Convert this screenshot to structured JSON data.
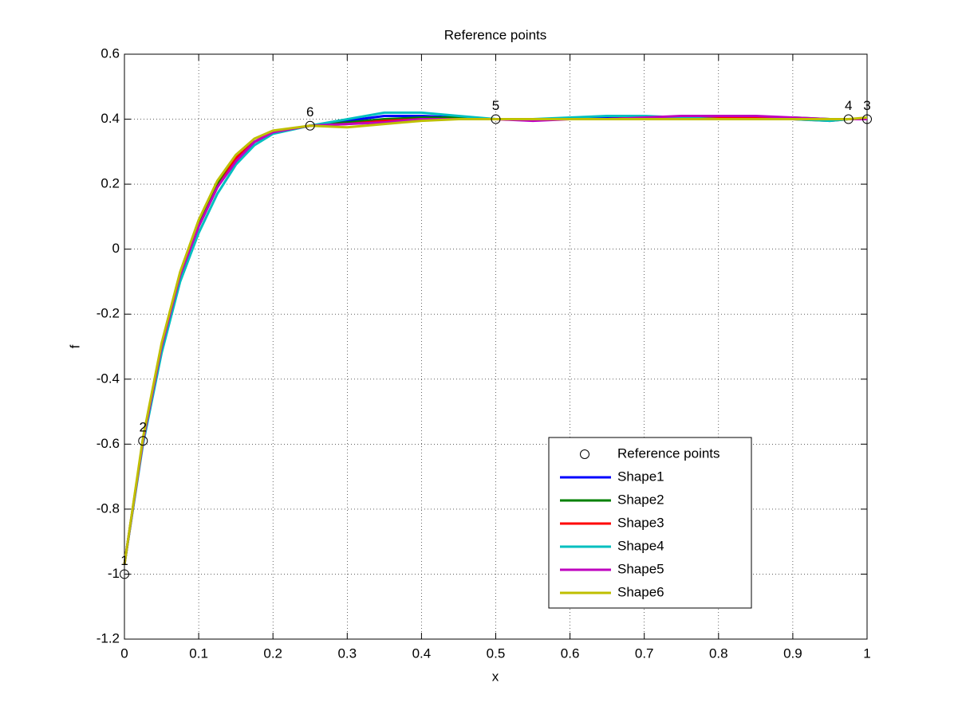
{
  "chart_data": {
    "type": "line",
    "title": "Reference points",
    "x_label": "x",
    "y_label": "f",
    "x": [
      0,
      0.025,
      0.05,
      0.075,
      0.1,
      0.125,
      0.15,
      0.175,
      0.2,
      0.25,
      0.3,
      0.35,
      0.4,
      0.45,
      0.5,
      0.55,
      0.6,
      0.65,
      0.7,
      0.75,
      0.8,
      0.85,
      0.9,
      0.95,
      0.975,
      1
    ],
    "series": [
      {
        "name": "Shape1",
        "color": "#0000ff",
        "values": [
          -0.97,
          -0.59,
          -0.3,
          -0.08,
          0.08,
          0.2,
          0.28,
          0.33,
          0.36,
          0.38,
          0.395,
          0.41,
          0.41,
          0.405,
          0.4,
          0.4,
          0.4,
          0.405,
          0.405,
          0.405,
          0.405,
          0.405,
          0.4,
          0.4,
          0.4,
          0.4
        ]
      },
      {
        "name": "Shape2",
        "color": "#008000",
        "values": [
          -0.97,
          -0.59,
          -0.3,
          -0.08,
          0.08,
          0.2,
          0.28,
          0.33,
          0.36,
          0.38,
          0.39,
          0.4,
          0.405,
          0.405,
          0.4,
          0.4,
          0.4,
          0.4,
          0.405,
          0.405,
          0.405,
          0.405,
          0.405,
          0.4,
          0.4,
          0.4
        ]
      },
      {
        "name": "Shape3",
        "color": "#ff0000",
        "values": [
          -0.97,
          -0.59,
          -0.3,
          -0.08,
          0.07,
          0.19,
          0.28,
          0.33,
          0.36,
          0.38,
          0.385,
          0.395,
          0.4,
          0.4,
          0.4,
          0.4,
          0.4,
          0.4,
          0.405,
          0.405,
          0.405,
          0.405,
          0.4,
          0.395,
          0.4,
          0.4
        ]
      },
      {
        "name": "Shape4",
        "color": "#00bfbf",
        "values": [
          -0.97,
          -0.6,
          -0.32,
          -0.1,
          0.05,
          0.17,
          0.26,
          0.32,
          0.355,
          0.38,
          0.4,
          0.42,
          0.42,
          0.41,
          0.4,
          0.4,
          0.405,
          0.41,
          0.41,
          0.405,
          0.4,
          0.4,
          0.4,
          0.395,
          0.4,
          0.4
        ]
      },
      {
        "name": "Shape5",
        "color": "#bf00bf",
        "values": [
          -0.97,
          -0.59,
          -0.3,
          -0.08,
          0.07,
          0.19,
          0.27,
          0.33,
          0.36,
          0.38,
          0.385,
          0.39,
          0.4,
          0.4,
          0.4,
          0.395,
          0.4,
          0.4,
          0.405,
          0.41,
          0.41,
          0.41,
          0.405,
          0.4,
          0.4,
          0.4
        ]
      },
      {
        "name": "Shape6",
        "color": "#bfbf00",
        "values": [
          -0.97,
          -0.58,
          -0.29,
          -0.07,
          0.09,
          0.21,
          0.29,
          0.34,
          0.365,
          0.38,
          0.375,
          0.385,
          0.395,
          0.4,
          0.4,
          0.4,
          0.4,
          0.4,
          0.4,
          0.4,
          0.4,
          0.4,
          0.4,
          0.4,
          0.4,
          0.405
        ]
      }
    ],
    "points": {
      "name": "Reference points",
      "color": "#000000",
      "x": [
        0,
        0.025,
        1,
        0.975,
        0.5,
        0.25
      ],
      "values": [
        -1,
        -0.59,
        0.4,
        0.4,
        0.4,
        0.38
      ],
      "labels": [
        "1",
        "2",
        "3",
        "4",
        "5",
        "6"
      ]
    },
    "xlim": [
      0,
      1
    ],
    "xticks": [
      0,
      0.1,
      0.2,
      0.3,
      0.4,
      0.5,
      0.6,
      0.7,
      0.8,
      0.9,
      1
    ],
    "ylim": [
      -1.2,
      0.6
    ],
    "yticks": [
      -1.2,
      -1,
      -0.8,
      -0.6,
      -0.4,
      -0.2,
      0,
      0.2,
      0.4,
      0.6
    ],
    "grid": true,
    "legend": "southeast"
  }
}
